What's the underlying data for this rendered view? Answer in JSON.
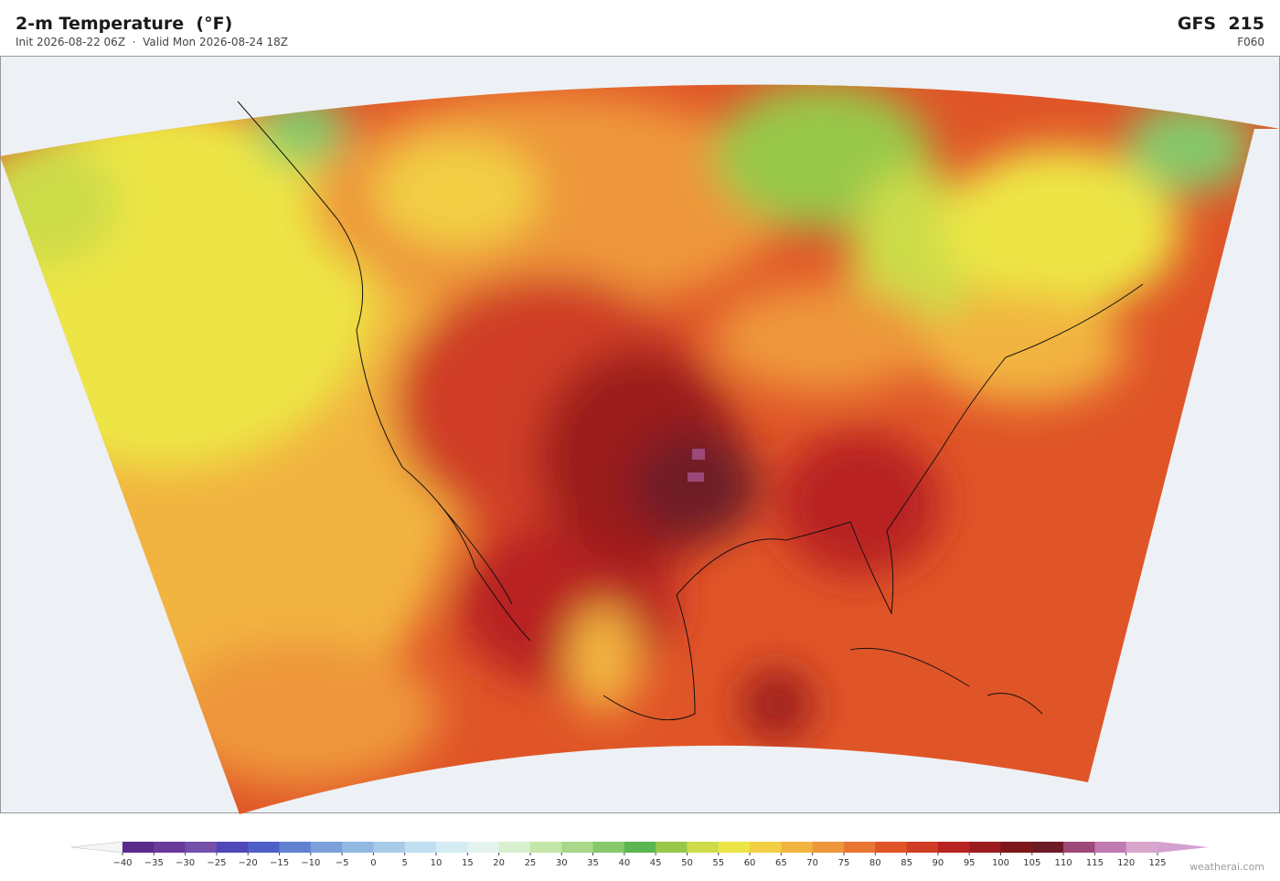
{
  "header": {
    "title": "2-m Temperature  (°F)",
    "subtitle": "Init 2026-08-22 06Z  ·  Valid Mon 2026-08-24 18Z",
    "model": "GFS  215",
    "forecast_hour": "F060"
  },
  "colorbar": {
    "ticks": [
      {
        "value": -40,
        "label": "−40"
      },
      {
        "value": -35,
        "label": "−35"
      },
      {
        "value": -30,
        "label": "−30"
      },
      {
        "value": -25,
        "label": "−25"
      },
      {
        "value": -20,
        "label": "−20"
      },
      {
        "value": -15,
        "label": "−15"
      },
      {
        "value": -10,
        "label": "−10"
      },
      {
        "value": -5,
        "label": "−5"
      },
      0,
      5,
      10,
      15,
      20,
      25,
      30,
      35,
      40,
      45,
      50,
      55,
      60,
      65,
      70,
      75,
      80,
      85,
      90,
      95,
      100,
      105,
      110,
      115,
      120,
      125
    ],
    "colors": [
      "#5a2a8c",
      "#6a3a9a",
      "#7450aa",
      "#4e48b8",
      "#4e5fc8",
      "#6180d0",
      "#7da0da",
      "#90b8e0",
      "#a8cce8",
      "#c0dff0",
      "#d4ecf2",
      "#e4f3ee",
      "#d8efd0",
      "#c4e6a8",
      "#a8d888",
      "#86c86a",
      "#5bb550",
      "#98c84a",
      "#cddc48",
      "#ede545",
      "#f2cf45",
      "#f2b440",
      "#ee963a",
      "#e87532",
      "#e05528",
      "#cf3d26",
      "#b82422",
      "#9b1c1e",
      "#7d1719",
      "#6e1a26",
      "#9c4878",
      "#c07ab0",
      "#d8a6cc"
    ],
    "under_color": "#f4f5f7",
    "over_color": "#d4a0d0"
  },
  "credit": "weatherai.com"
}
